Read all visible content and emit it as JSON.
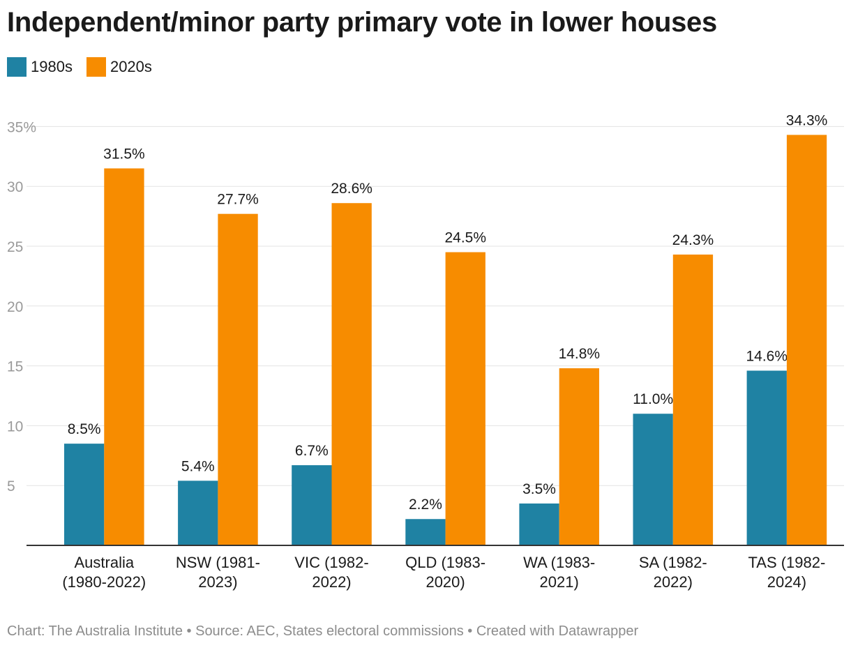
{
  "chart_title": "Independent/minor party primary vote in lower houses",
  "footer_text": "Chart: The Australia Institute • Source: AEC, States electoral commissions  • Created with Datawrapper",
  "chart_data": {
    "type": "bar",
    "title": "Independent/minor party primary vote in lower houses",
    "categories": [
      [
        "Australia",
        "(1980-2022)"
      ],
      [
        "NSW (1981-",
        "2023)"
      ],
      [
        "VIC (1982-",
        "2022)"
      ],
      [
        "QLD (1983-",
        "2020)"
      ],
      [
        "WA (1983-",
        "2021)"
      ],
      [
        "SA (1982-",
        "2022)"
      ],
      [
        "TAS (1982-",
        "2024)"
      ]
    ],
    "series": [
      {
        "name": "1980s",
        "color": "#1f82a3",
        "values": [
          8.5,
          5.4,
          6.7,
          2.2,
          3.5,
          11.0,
          14.6
        ]
      },
      {
        "name": "2020s",
        "color": "#f78c00",
        "values": [
          31.5,
          27.7,
          28.6,
          24.5,
          14.8,
          24.3,
          34.3
        ]
      }
    ],
    "data_labels": [
      [
        "8.5%",
        "5.4%",
        "6.7%",
        "2.2%",
        "3.5%",
        "11.0%",
        "14.6%"
      ],
      [
        "31.5%",
        "27.7%",
        "28.6%",
        "24.5%",
        "14.8%",
        "24.3%",
        "34.3%"
      ]
    ],
    "yticks": [
      5,
      10,
      15,
      20,
      25,
      30,
      35
    ],
    "ytick_labels": [
      "5",
      "10",
      "15",
      "20",
      "25",
      "30",
      "35%"
    ],
    "ylim": [
      0,
      35
    ],
    "grid": true,
    "legend_position": "top-left"
  }
}
